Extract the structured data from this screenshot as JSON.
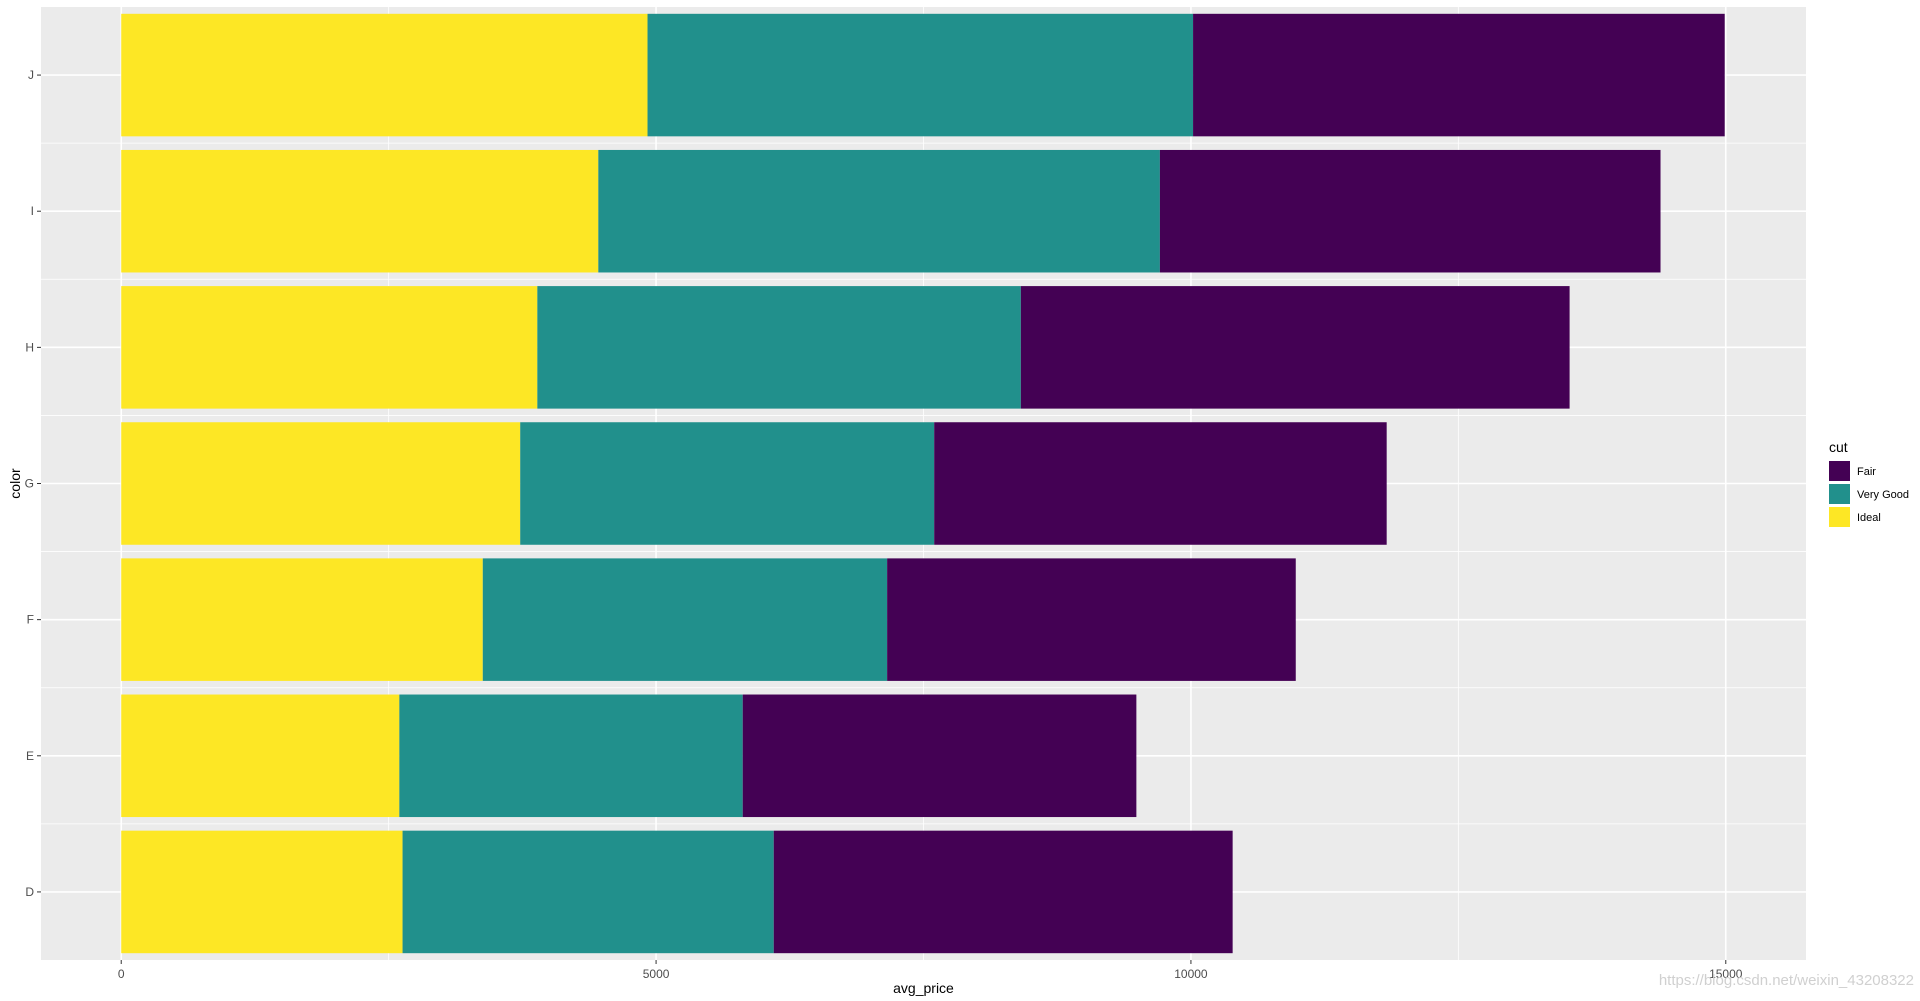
{
  "chart_data": {
    "type": "bar",
    "orientation": "horizontal",
    "stacked": true,
    "xlabel": "avg_price",
    "ylabel": "color",
    "xlim": [
      -750,
      15750
    ],
    "xticks": [
      0,
      5000,
      10000,
      15000
    ],
    "xtick_labels": [
      "0",
      "5000",
      "10000",
      "15000"
    ],
    "grid": true,
    "legend_position": "right",
    "legend_title": "cut",
    "categories": [
      "D",
      "E",
      "F",
      "G",
      "H",
      "I",
      "J"
    ],
    "series": [
      {
        "name": "Ideal",
        "color": "#fde725",
        "values": [
          2630,
          2600,
          3380,
          3730,
          3890,
          4460,
          4920
        ]
      },
      {
        "name": "Very Good",
        "color": "#21908c",
        "values": [
          3470,
          3210,
          3780,
          3870,
          4520,
          5250,
          5100
        ]
      },
      {
        "name": "Fair",
        "color": "#440154",
        "values": [
          4290,
          3680,
          3820,
          4230,
          5130,
          4680,
          4970
        ]
      }
    ],
    "legend_order": [
      "Fair",
      "Very Good",
      "Ideal"
    ]
  },
  "watermark": "https://blog.csdn.net/weixin_43208322"
}
